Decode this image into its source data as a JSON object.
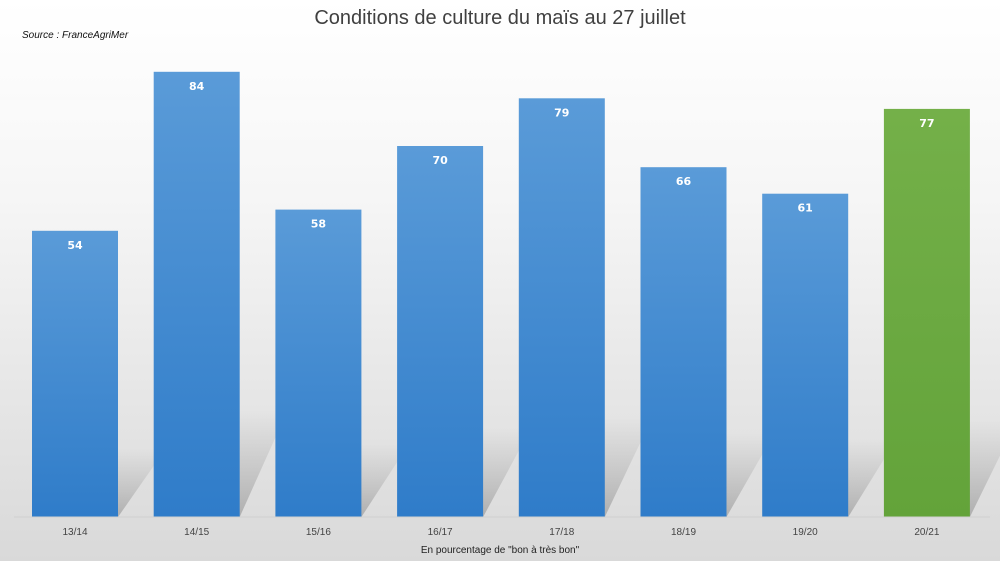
{
  "chart_data": {
    "type": "bar",
    "title": "Conditions de culture du maïs au 27 juillet",
    "source": "Source : FranceAgriMer",
    "xlabel": "En pourcentage de \"bon à très bon\"",
    "ylabel": "",
    "categories": [
      "13/14",
      "14/15",
      "15/16",
      "16/17",
      "17/18",
      "18/19",
      "19/20",
      "20/21"
    ],
    "values": [
      54,
      84,
      58,
      70,
      79,
      66,
      61,
      77
    ],
    "ylim": [
      0,
      90
    ],
    "grid": false,
    "legend": "none",
    "colors": {
      "bar_top": "#5a9bd8",
      "bar_bottom": "#2f7cc9",
      "highlight_top": "#74b049",
      "highlight_bottom": "#63a33a",
      "highlight_category": "20/21"
    }
  }
}
